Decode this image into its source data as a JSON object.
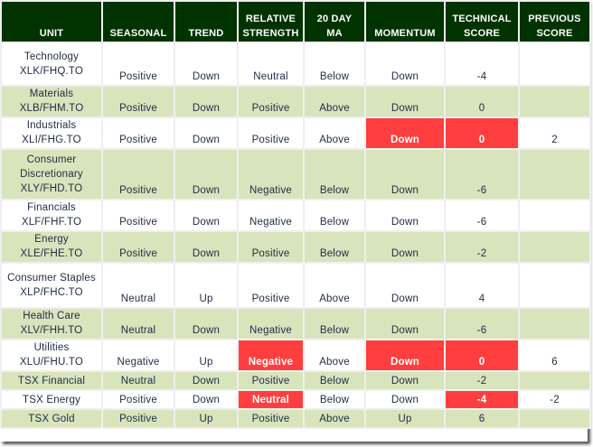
{
  "headers": {
    "unit": "UNIT",
    "seasonal": "SEASONAL",
    "trend": "TREND",
    "relative_strength": [
      "RELATIVE",
      "STRENGTH"
    ],
    "ma20": [
      "20 DAY",
      "MA"
    ],
    "momentum": "MOMENTUM",
    "technical_score": [
      "TECHNICAL",
      "SCORE"
    ],
    "previous_score": [
      "PREVIOUS",
      "SCORE"
    ]
  },
  "colors": {
    "header_bg": "#003300",
    "alt_row": "#d8e4bc",
    "alert": "#ff3f3f"
  },
  "rows": [
    {
      "sector": "Technology",
      "ticker": "XLK/FHQ.TO",
      "seasonal": "Positive",
      "trend": "Down",
      "rs": "Neutral",
      "ma": "Below",
      "momentum": "Down",
      "score": "-4",
      "previous": "",
      "alerts": []
    },
    {
      "sector": "Materials",
      "ticker": "XLB/FHM.TO",
      "seasonal": "Positive",
      "trend": "Down",
      "rs": "Positive",
      "ma": "Above",
      "momentum": "Down",
      "score": "0",
      "previous": "",
      "alerts": []
    },
    {
      "sector": "Industrials",
      "ticker": "XLI/FHG.TO",
      "seasonal": "Positive",
      "trend": "Down",
      "rs": "Positive",
      "ma": "Above",
      "momentum": "Down",
      "score": "0",
      "previous": "2",
      "alerts": [
        "momentum",
        "score"
      ]
    },
    {
      "sector": "Consumer Discretionary",
      "ticker": "XLY/FHD.TO",
      "seasonal": "Positive",
      "trend": "Down",
      "rs": "Negative",
      "ma": "Below",
      "momentum": "Down",
      "score": "-6",
      "previous": "",
      "alerts": []
    },
    {
      "sector": "Financials",
      "ticker": "XLF/FHF.TO",
      "seasonal": "Positive",
      "trend": "Down",
      "rs": "Negative",
      "ma": "Below",
      "momentum": "Down",
      "score": "-6",
      "previous": "",
      "alerts": []
    },
    {
      "sector": "Energy",
      "ticker": "XLE/FHE.TO",
      "seasonal": "Positive",
      "trend": "Down",
      "rs": "Positive",
      "ma": "Below",
      "momentum": "Down",
      "score": "-2",
      "previous": "",
      "alerts": []
    },
    {
      "sector": "Consumer Staples",
      "ticker": "XLP/FHC.TO",
      "seasonal": "Neutral",
      "trend": "Up",
      "rs": "Positive",
      "ma": "Above",
      "momentum": "Down",
      "score": "4",
      "previous": "",
      "alerts": []
    },
    {
      "sector": "Health Care",
      "ticker": "XLV/FHH.TO",
      "seasonal": "Neutral",
      "trend": "Down",
      "rs": "Negative",
      "ma": "Below",
      "momentum": "Down",
      "score": "-6",
      "previous": "",
      "alerts": []
    },
    {
      "sector": "Utilities",
      "ticker": "XLU/FHU.TO",
      "seasonal": "Negative",
      "trend": "Up",
      "rs": "Negative",
      "ma": "Above",
      "momentum": "Down",
      "score": "0",
      "previous": "6",
      "alerts": [
        "rs",
        "momentum",
        "score"
      ]
    },
    {
      "sector": "TSX Financial",
      "ticker": "",
      "seasonal": "Neutral",
      "trend": "Down",
      "rs": "Positive",
      "ma": "Below",
      "momentum": "Down",
      "score": "-2",
      "previous": "",
      "alerts": []
    },
    {
      "sector": "TSX Energy",
      "ticker": "",
      "seasonal": "Positive",
      "trend": "Down",
      "rs": "Neutral",
      "ma": "Below",
      "momentum": "Down",
      "score": "-4",
      "previous": "-2",
      "alerts": [
        "rs",
        "score"
      ]
    },
    {
      "sector": "TSX Gold",
      "ticker": "",
      "seasonal": "Positive",
      "trend": "Up",
      "rs": "Positive",
      "ma": "Above",
      "momentum": "Up",
      "score": "6",
      "previous": "",
      "alerts": []
    }
  ]
}
